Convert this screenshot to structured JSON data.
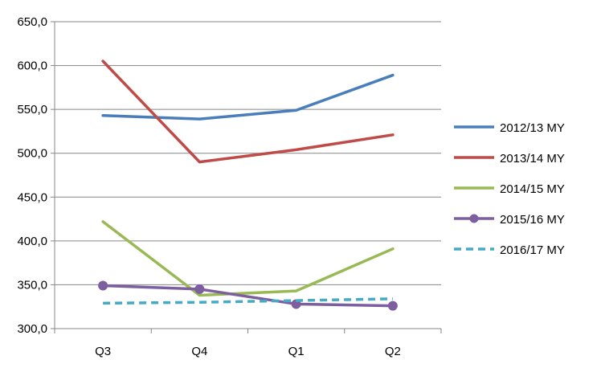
{
  "chart_data": {
    "type": "line",
    "title": "",
    "xlabel": "",
    "ylabel": "",
    "categories": [
      "Q3",
      "Q4",
      "Q1",
      "Q2"
    ],
    "ylim": [
      300,
      650
    ],
    "yticks": [
      "300,0",
      "350,0",
      "400,0",
      "450,0",
      "500,0",
      "550,0",
      "600,0",
      "650,0"
    ],
    "grid": "horizontal",
    "legend_position": "right",
    "series": [
      {
        "name": "2012/13 MY",
        "values": [
          543,
          539,
          549,
          589
        ],
        "color": "#4a7ebb",
        "dash": "solid",
        "marker": "none"
      },
      {
        "name": "2013/14 MY",
        "values": [
          605,
          490,
          504,
          521
        ],
        "color": "#be4b48",
        "dash": "solid",
        "marker": "none"
      },
      {
        "name": "2014/15 MY",
        "values": [
          422,
          338,
          343,
          391
        ],
        "color": "#98b954",
        "dash": "solid",
        "marker": "none"
      },
      {
        "name": "2015/16 MY",
        "values": [
          349,
          345,
          328,
          326
        ],
        "color": "#7d5fa0",
        "dash": "solid",
        "marker": "circle"
      },
      {
        "name": "2016/17 MY",
        "values": [
          329,
          330,
          332,
          334
        ],
        "color": "#46aac5",
        "dash": "dashed",
        "marker": "none"
      }
    ]
  }
}
